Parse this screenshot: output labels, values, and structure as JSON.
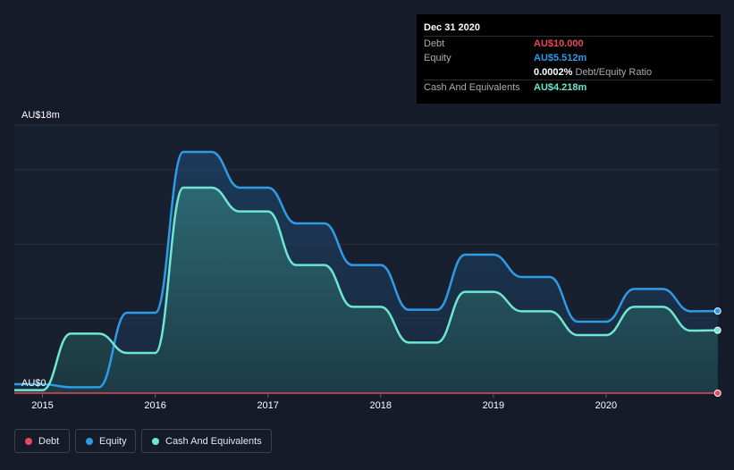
{
  "tooltip": {
    "date": "Dec 31 2020",
    "rows": [
      {
        "label": "Debt",
        "value": "AU$10.000",
        "color": "#e64a5a"
      },
      {
        "label": "Equity",
        "value": "AU$5.512m",
        "color": "#2f9be6"
      },
      {
        "label": "",
        "value": "0.0002%",
        "sub": "Debt/Equity Ratio",
        "color": "#ffffff"
      },
      {
        "label": "Cash And Equivalents",
        "value": "AU$4.218m",
        "color": "#6ee7d1"
      }
    ]
  },
  "legend": [
    {
      "label": "Debt",
      "color": "#e64a5a"
    },
    {
      "label": "Equity",
      "color": "#2f9be6"
    },
    {
      "label": "Cash And Equivalents",
      "color": "#6ee7d1"
    }
  ],
  "chart_data": {
    "type": "area",
    "y_top_label": "AU$18m",
    "y_zero_label": "AU$0",
    "ylim": [
      0,
      18
    ],
    "xlim": [
      2014.75,
      2021.0
    ],
    "x_ticks": [
      {
        "value": 2015,
        "label": "2015"
      },
      {
        "value": 2016,
        "label": "2016"
      },
      {
        "value": 2017,
        "label": "2017"
      },
      {
        "value": 2018,
        "label": "2018"
      },
      {
        "value": 2019,
        "label": "2019"
      },
      {
        "value": 2020,
        "label": "2020"
      }
    ],
    "gridlines": [
      5,
      10,
      15,
      18
    ],
    "series": [
      {
        "name": "Debt",
        "color": "#e64a5a",
        "points": [
          [
            2014.75,
            0
          ],
          [
            2020.99,
            0
          ]
        ]
      },
      {
        "name": "Equity",
        "color": "#2f9be6",
        "points": [
          [
            2014.75,
            0.6
          ],
          [
            2015.0,
            0.6
          ],
          [
            2015.25,
            0.4
          ],
          [
            2015.5,
            0.4
          ],
          [
            2015.75,
            5.4
          ],
          [
            2016.0,
            5.4
          ],
          [
            2016.25,
            16.2
          ],
          [
            2016.5,
            16.2
          ],
          [
            2016.75,
            13.8
          ],
          [
            2017.0,
            13.8
          ],
          [
            2017.25,
            11.4
          ],
          [
            2017.5,
            11.4
          ],
          [
            2017.75,
            8.6
          ],
          [
            2018.0,
            8.6
          ],
          [
            2018.25,
            5.6
          ],
          [
            2018.5,
            5.6
          ],
          [
            2018.75,
            9.3
          ],
          [
            2019.0,
            9.3
          ],
          [
            2019.25,
            7.8
          ],
          [
            2019.5,
            7.8
          ],
          [
            2019.75,
            4.8
          ],
          [
            2020.0,
            4.8
          ],
          [
            2020.25,
            7.0
          ],
          [
            2020.5,
            7.0
          ],
          [
            2020.75,
            5.5
          ],
          [
            2020.99,
            5.51
          ]
        ]
      },
      {
        "name": "Cash And Equivalents",
        "color": "#6ee7d1",
        "points": [
          [
            2014.75,
            0.2
          ],
          [
            2015.0,
            0.2
          ],
          [
            2015.25,
            4.0
          ],
          [
            2015.5,
            4.0
          ],
          [
            2015.75,
            2.7
          ],
          [
            2016.0,
            2.7
          ],
          [
            2016.25,
            13.8
          ],
          [
            2016.5,
            13.8
          ],
          [
            2016.75,
            12.2
          ],
          [
            2017.0,
            12.2
          ],
          [
            2017.25,
            8.6
          ],
          [
            2017.5,
            8.6
          ],
          [
            2017.75,
            5.8
          ],
          [
            2018.0,
            5.8
          ],
          [
            2018.25,
            3.4
          ],
          [
            2018.5,
            3.4
          ],
          [
            2018.75,
            6.8
          ],
          [
            2019.0,
            6.8
          ],
          [
            2019.25,
            5.5
          ],
          [
            2019.5,
            5.5
          ],
          [
            2019.75,
            3.9
          ],
          [
            2020.0,
            3.9
          ],
          [
            2020.25,
            5.8
          ],
          [
            2020.5,
            5.8
          ],
          [
            2020.75,
            4.2
          ],
          [
            2020.99,
            4.22
          ]
        ]
      }
    ]
  }
}
